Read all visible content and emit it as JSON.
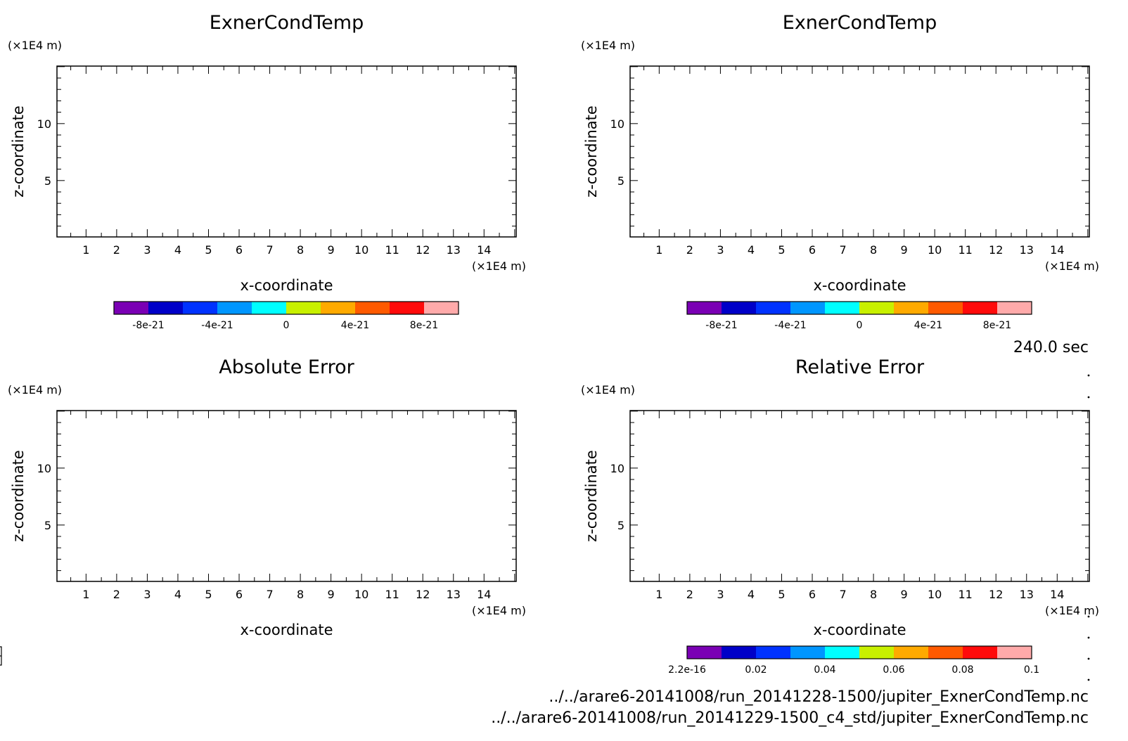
{
  "time_label": "240.0 sec",
  "file_paths": [
    "../../arare6-20141008/run_20141228-1500/jupiter_ExnerCondTemp.nc",
    "../../arare6-20141008/run_20141229-1500_c4_std/jupiter_ExnerCondTemp.nc"
  ],
  "colors": {
    "colorbar": [
      "#7a00b4",
      "#0000c8",
      "#0032ff",
      "#0096ff",
      "#00ffff",
      "#c8f000",
      "#ffaa00",
      "#ff5a00",
      "#ff0a0a",
      "#ffaaaa"
    ]
  },
  "chart_data": [
    {
      "type": "heatmap",
      "title": "ExnerCondTemp",
      "xlabel": "x-coordinate",
      "ylabel": "z-coordinate",
      "x_unit": "(×1E4 m)",
      "y_unit": "(×1E4 m)",
      "xlim": [
        0.05,
        15.05
      ],
      "ylim": [
        0.05,
        15.05
      ],
      "x_ticks": [
        "1",
        "2",
        "3",
        "4",
        "5",
        "6",
        "7",
        "8",
        "9",
        "10",
        "11",
        "12",
        "13",
        "14"
      ],
      "y_ticks": [
        "5",
        "10"
      ],
      "values": [],
      "colorbar": {
        "levels": [
          -1e-20,
          -8e-21,
          -6e-21,
          -4e-21,
          -2e-21,
          0,
          2e-21,
          4e-21,
          6e-21,
          8e-21,
          1e-20
        ],
        "labels": [
          "-8e-21",
          "-4e-21",
          "0",
          "4e-21",
          "8e-21"
        ],
        "label_values": [
          -8e-21,
          -4e-21,
          0,
          4e-21,
          8e-21
        ]
      }
    },
    {
      "type": "heatmap",
      "title": "ExnerCondTemp",
      "xlabel": "x-coordinate",
      "ylabel": "z-coordinate",
      "x_unit": "(×1E4 m)",
      "y_unit": "(×1E4 m)",
      "xlim": [
        0.05,
        15.05
      ],
      "ylim": [
        0.05,
        15.05
      ],
      "x_ticks": [
        "1",
        "2",
        "3",
        "4",
        "5",
        "6",
        "7",
        "8",
        "9",
        "10",
        "11",
        "12",
        "13",
        "14"
      ],
      "y_ticks": [
        "5",
        "10"
      ],
      "values": [],
      "colorbar": {
        "levels": [
          -1e-20,
          -8e-21,
          -6e-21,
          -4e-21,
          -2e-21,
          0,
          2e-21,
          4e-21,
          6e-21,
          8e-21,
          1e-20
        ],
        "labels": [
          "-8e-21",
          "-4e-21",
          "0",
          "4e-21",
          "8e-21"
        ],
        "label_values": [
          -8e-21,
          -4e-21,
          0,
          4e-21,
          8e-21
        ]
      }
    },
    {
      "type": "heatmap",
      "title": "Absolute Error",
      "xlabel": "x-coordinate",
      "ylabel": "z-coordinate",
      "x_unit": "(×1E4 m)",
      "y_unit": "(×1E4 m)",
      "xlim": [
        0.05,
        15.05
      ],
      "ylim": [
        0.05,
        15.05
      ],
      "x_ticks": [
        "1",
        "2",
        "3",
        "4",
        "5",
        "6",
        "7",
        "8",
        "9",
        "10",
        "11",
        "12",
        "13",
        "14"
      ],
      "y_ticks": [
        "5",
        "10"
      ],
      "values": []
    },
    {
      "type": "heatmap",
      "title": "Relative Error",
      "xlabel": "x-coordinate",
      "ylabel": "z-coordinate",
      "x_unit": "(×1E4 m)",
      "y_unit": "(×1E4 m)",
      "xlim": [
        0.05,
        15.05
      ],
      "ylim": [
        0.05,
        15.05
      ],
      "x_ticks": [
        "1",
        "2",
        "3",
        "4",
        "5",
        "6",
        "7",
        "8",
        "9",
        "10",
        "11",
        "12",
        "13",
        "14"
      ],
      "y_ticks": [
        "5",
        "10"
      ],
      "values": [],
      "colorbar": {
        "levels": [
          0,
          0.01,
          0.02,
          0.03,
          0.04,
          0.05,
          0.06,
          0.07,
          0.08,
          0.09,
          0.1
        ],
        "labels": [
          "2.2e-16",
          "0.02",
          "0.04",
          "0.06",
          "0.08",
          "0.1"
        ],
        "label_values": [
          0,
          0.02,
          0.04,
          0.06,
          0.08,
          0.1
        ]
      }
    }
  ]
}
